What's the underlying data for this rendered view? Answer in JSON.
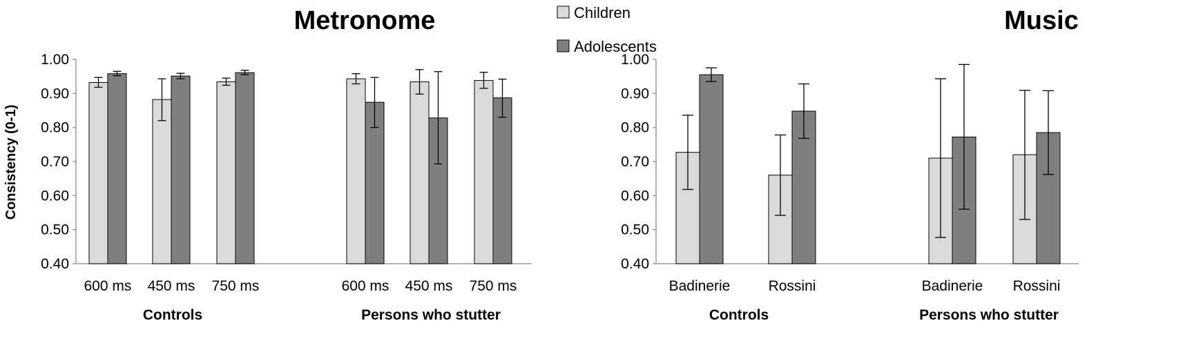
{
  "legend": {
    "items": [
      {
        "label": "Children",
        "color": "#dadada"
      },
      {
        "label": "Adolescents",
        "color": "#7f7f7f"
      }
    ]
  },
  "chart_data": [
    {
      "type": "bar",
      "title": "Metronome",
      "ylabel": "Consistency (0-1)",
      "xlabel": "",
      "ylim": [
        0.4,
        1.0
      ],
      "yticks": [
        "0.40",
        "0.50",
        "0.60",
        "0.70",
        "0.80",
        "0.90",
        "1.00"
      ],
      "groups": [
        {
          "label": "Controls",
          "categories": [
            "600 ms",
            "450 ms",
            "750 ms"
          ]
        },
        {
          "label": "Persons who stutter",
          "categories": [
            "600 ms",
            "450 ms",
            "750 ms"
          ]
        }
      ],
      "series": [
        {
          "name": "Children",
          "values": [
            0.932,
            0.882,
            0.934,
            0.943,
            0.934,
            0.938
          ],
          "err_low": [
            0.918,
            0.82,
            0.924,
            0.928,
            0.898,
            0.915
          ],
          "err_high": [
            0.947,
            0.943,
            0.945,
            0.958,
            0.97,
            0.962
          ]
        },
        {
          "name": "Adolescents",
          "values": [
            0.958,
            0.951,
            0.961,
            0.874,
            0.828,
            0.887
          ],
          "err_low": [
            0.952,
            0.943,
            0.955,
            0.8,
            0.693,
            0.83
          ],
          "err_high": [
            0.965,
            0.959,
            0.968,
            0.947,
            0.964,
            0.942
          ]
        }
      ]
    },
    {
      "type": "bar",
      "title": "Music",
      "ylabel": "",
      "xlabel": "",
      "ylim": [
        0.4,
        1.0
      ],
      "yticks": [
        "0.40",
        "0.50",
        "0.60",
        "0.70",
        "0.80",
        "0.90",
        "1.00"
      ],
      "groups": [
        {
          "label": "Controls",
          "categories": [
            "Badinerie",
            "Rossini"
          ]
        },
        {
          "label": "Persons who stutter",
          "categories": [
            "Badinerie",
            "Rossini"
          ]
        }
      ],
      "series": [
        {
          "name": "Children",
          "values": [
            0.727,
            0.66,
            0.71,
            0.72
          ],
          "err_low": [
            0.618,
            0.542,
            0.477,
            0.53
          ],
          "err_high": [
            0.836,
            0.778,
            0.943,
            0.909
          ]
        },
        {
          "name": "Adolescents",
          "values": [
            0.955,
            0.848,
            0.772,
            0.785
          ],
          "err_low": [
            0.935,
            0.768,
            0.56,
            0.662
          ],
          "err_high": [
            0.975,
            0.928,
            0.985,
            0.908
          ]
        }
      ]
    }
  ]
}
